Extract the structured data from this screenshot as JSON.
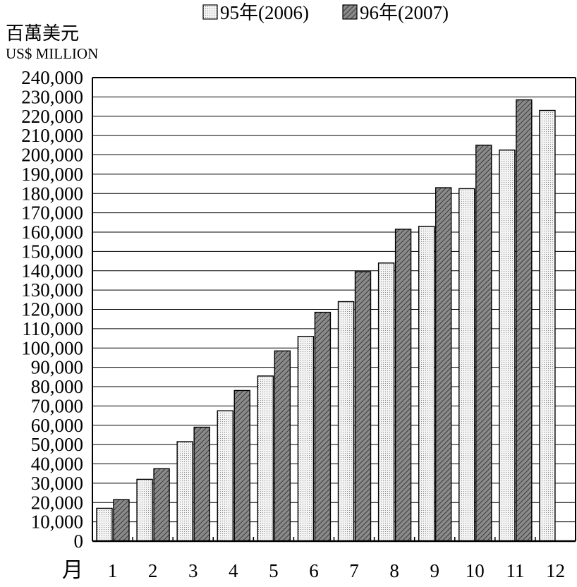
{
  "chart_data": {
    "type": "bar",
    "unit_label_zh": "百萬美元",
    "unit_label_en": "US$ MILLION",
    "xlabel": "月",
    "categories": [
      "1",
      "2",
      "3",
      "4",
      "5",
      "6",
      "7",
      "8",
      "9",
      "10",
      "11",
      "12"
    ],
    "ylim": [
      0,
      240000
    ],
    "ytick_step": 10000,
    "yticks": [
      "0",
      "10,000",
      "20,000",
      "30,000",
      "40,000",
      "50,000",
      "60,000",
      "70,000",
      "80,000",
      "90,000",
      "100,000",
      "110,000",
      "120,000",
      "130,000",
      "140,000",
      "150,000",
      "160,000",
      "170,000",
      "180,000",
      "190,000",
      "200,000",
      "210,000",
      "220,000",
      "230,000",
      "240,000"
    ],
    "grid": true,
    "legend_position": "top",
    "series": [
      {
        "name": "95年(2006)",
        "fill": "dotted-light",
        "color": "#e6e6e6",
        "values": [
          17000,
          32000,
          51500,
          67500,
          85500,
          106000,
          124000,
          144000,
          163000,
          182500,
          202500,
          223000
        ]
      },
      {
        "name": "96年(2007)",
        "fill": "hatched-dark",
        "color": "#6e6e6e",
        "values": [
          21500,
          37500,
          59000,
          78000,
          98500,
          118500,
          139500,
          161500,
          183000,
          205000,
          228500,
          null
        ]
      }
    ]
  }
}
